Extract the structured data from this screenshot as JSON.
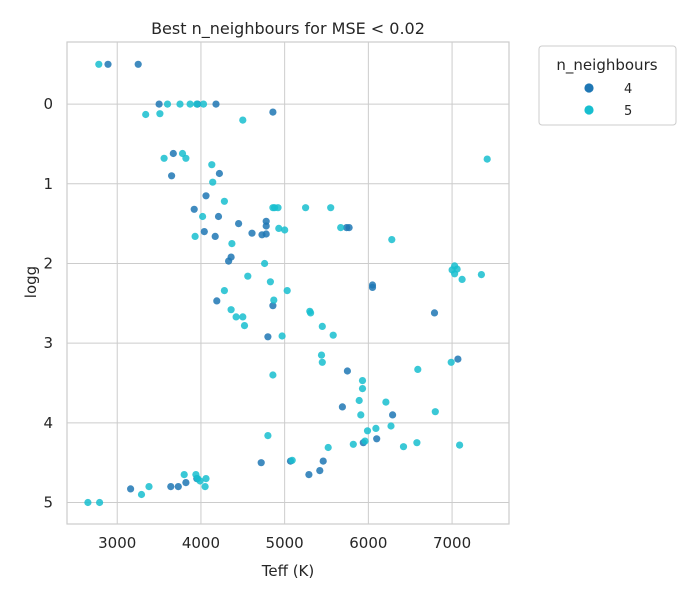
{
  "chart_data": {
    "type": "scatter",
    "title": "Best n_neighbours for MSE < 0.02",
    "xlabel": "Teff (K)",
    "ylabel": "logg",
    "xlim": [
      2400,
      7680
    ],
    "ylim": [
      5.27,
      -0.78
    ],
    "y_inverted": true,
    "xticks": [
      3000,
      4000,
      5000,
      6000,
      7000
    ],
    "yticks": [
      0,
      1,
      2,
      3,
      4,
      5
    ],
    "grid": true,
    "legend": {
      "title": "n_neighbours",
      "placement": "outside-right-top"
    },
    "series": [
      {
        "name": "4",
        "color": "#1f77b4",
        "points": [
          [
            2890,
            -0.5
          ],
          [
            3250,
            -0.5
          ],
          [
            3500,
            0.0
          ],
          [
            3960,
            0.0
          ],
          [
            4180,
            0.0
          ],
          [
            4860,
            0.1
          ],
          [
            3670,
            0.62
          ],
          [
            3650,
            0.9
          ],
          [
            4220,
            0.87
          ],
          [
            4060,
            1.15
          ],
          [
            3920,
            1.32
          ],
          [
            4210,
            1.41
          ],
          [
            4450,
            1.5
          ],
          [
            4780,
            1.47
          ],
          [
            4780,
            1.53
          ],
          [
            4040,
            1.6
          ],
          [
            4170,
            1.66
          ],
          [
            4610,
            1.62
          ],
          [
            4730,
            1.64
          ],
          [
            4780,
            1.63
          ],
          [
            5740,
            1.55
          ],
          [
            5770,
            1.55
          ],
          [
            4360,
            1.92
          ],
          [
            4330,
            1.97
          ],
          [
            6050,
            2.27
          ],
          [
            6050,
            2.3
          ],
          [
            4860,
            2.53
          ],
          [
            4190,
            2.47
          ],
          [
            4800,
            2.92
          ],
          [
            6790,
            2.62
          ],
          [
            5750,
            3.35
          ],
          [
            7070,
            3.2
          ],
          [
            5690,
            3.8
          ],
          [
            6290,
            3.9
          ],
          [
            6100,
            4.2
          ],
          [
            5940,
            4.25
          ],
          [
            4720,
            4.5
          ],
          [
            5460,
            4.48
          ],
          [
            5070,
            4.48
          ],
          [
            5420,
            4.6
          ],
          [
            5290,
            4.65
          ],
          [
            3820,
            4.75
          ],
          [
            3640,
            4.8
          ],
          [
            3730,
            4.8
          ],
          [
            3160,
            4.83
          ],
          [
            3950,
            4.7
          ]
        ]
      },
      {
        "name": "5",
        "color": "#17becf",
        "points": [
          [
            2780,
            -0.5
          ],
          [
            3600,
            0.0
          ],
          [
            3750,
            0.0
          ],
          [
            3870,
            0.0
          ],
          [
            3950,
            0.0
          ],
          [
            4030,
            0.0
          ],
          [
            3340,
            0.13
          ],
          [
            3510,
            0.12
          ],
          [
            4500,
            0.2
          ],
          [
            3780,
            0.62
          ],
          [
            3820,
            0.68
          ],
          [
            3560,
            0.68
          ],
          [
            4130,
            0.76
          ],
          [
            4140,
            0.98
          ],
          [
            7420,
            0.69
          ],
          [
            4280,
            1.22
          ],
          [
            4860,
            1.3
          ],
          [
            4880,
            1.3
          ],
          [
            4920,
            1.3
          ],
          [
            5250,
            1.3
          ],
          [
            5550,
            1.3
          ],
          [
            4020,
            1.41
          ],
          [
            4930,
            1.56
          ],
          [
            5000,
            1.58
          ],
          [
            5670,
            1.55
          ],
          [
            3930,
            1.66
          ],
          [
            4370,
            1.75
          ],
          [
            6280,
            1.7
          ],
          [
            4760,
            2.0
          ],
          [
            7030,
            2.03
          ],
          [
            7060,
            2.07
          ],
          [
            7000,
            2.08
          ],
          [
            7030,
            2.13
          ],
          [
            7120,
            2.2
          ],
          [
            7350,
            2.14
          ],
          [
            4560,
            2.16
          ],
          [
            4830,
            2.23
          ],
          [
            4280,
            2.34
          ],
          [
            5030,
            2.34
          ],
          [
            4870,
            2.46
          ],
          [
            4360,
            2.58
          ],
          [
            5300,
            2.6
          ],
          [
            5310,
            2.62
          ],
          [
            4420,
            2.67
          ],
          [
            4500,
            2.67
          ],
          [
            4520,
            2.78
          ],
          [
            5450,
            2.79
          ],
          [
            4970,
            2.91
          ],
          [
            5580,
            2.9
          ],
          [
            5440,
            3.15
          ],
          [
            5450,
            3.24
          ],
          [
            6990,
            3.24
          ],
          [
            4860,
            3.4
          ],
          [
            6590,
            3.33
          ],
          [
            5930,
            3.47
          ],
          [
            5930,
            3.57
          ],
          [
            6210,
            3.74
          ],
          [
            5890,
            3.72
          ],
          [
            6800,
            3.86
          ],
          [
            5910,
            3.9
          ],
          [
            6270,
            4.04
          ],
          [
            6090,
            4.07
          ],
          [
            5990,
            4.1
          ],
          [
            4800,
            4.16
          ],
          [
            6580,
            4.25
          ],
          [
            5820,
            4.27
          ],
          [
            6420,
            4.3
          ],
          [
            7090,
            4.28
          ],
          [
            5520,
            4.31
          ],
          [
            5960,
            4.23
          ],
          [
            5090,
            4.47
          ],
          [
            3800,
            4.65
          ],
          [
            3940,
            4.65
          ],
          [
            3960,
            4.7
          ],
          [
            4060,
            4.7
          ],
          [
            3990,
            4.73
          ],
          [
            4050,
            4.8
          ],
          [
            3380,
            4.8
          ],
          [
            3290,
            4.9
          ],
          [
            2650,
            5.0
          ],
          [
            2790,
            5.0
          ]
        ]
      }
    ]
  }
}
